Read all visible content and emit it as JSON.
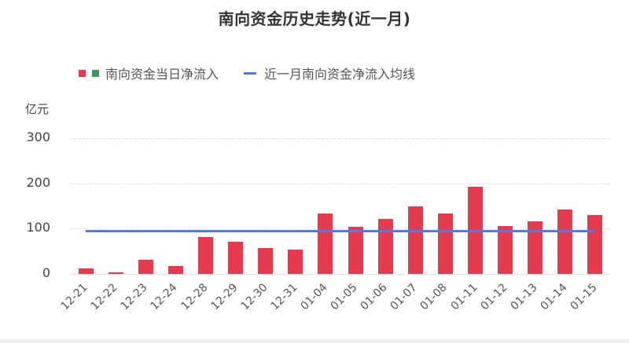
{
  "title": "南向资金历史走势(近一月)",
  "legend": {
    "bar_label": "南向资金当日净流入",
    "line_label": "近一月南向资金净流入均线"
  },
  "colors": {
    "positive": "#E43B4E",
    "negative": "#3E9A5B",
    "average": "#5478E4",
    "grid": "#e2e2e2"
  },
  "y_axis": {
    "unit": "亿元",
    "ticks": [
      "300",
      "200",
      "100",
      "0"
    ]
  },
  "chart_data": {
    "type": "bar",
    "title": "南向资金历史走势(近一月)",
    "xlabel": "",
    "ylabel": "亿元",
    "ylim": [
      0,
      300
    ],
    "grid": true,
    "legend_position": "top",
    "categories": [
      "12-21",
      "12-22",
      "12-23",
      "12-24",
      "12-28",
      "12-29",
      "12-30",
      "12-31",
      "01-04",
      "01-05",
      "01-06",
      "01-07",
      "01-08",
      "01-11",
      "01-12",
      "01-13",
      "01-14",
      "01-15"
    ],
    "series": [
      {
        "name": "南向资金当日净流入",
        "type": "bar",
        "values": [
          12,
          3,
          31,
          17,
          82,
          71,
          57,
          54,
          133,
          104,
          121,
          149,
          133,
          192,
          105,
          116,
          143,
          130
        ]
      },
      {
        "name": "近一月南向资金净流入均线",
        "type": "line",
        "values": [
          95,
          95,
          95,
          95,
          95,
          95,
          95,
          95,
          95,
          95,
          95,
          95,
          95,
          95,
          95,
          95,
          95,
          95
        ]
      }
    ]
  }
}
